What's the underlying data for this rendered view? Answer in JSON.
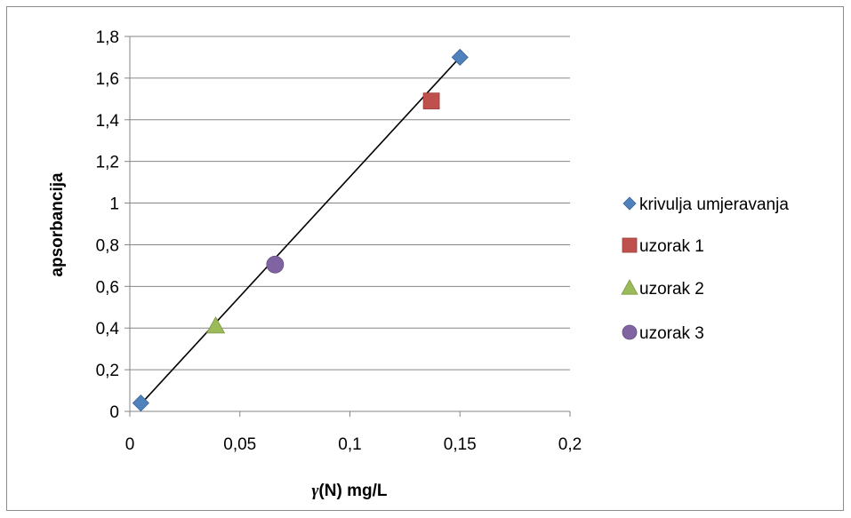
{
  "chart_data": {
    "type": "scatter",
    "title": "",
    "xlabel_symbol": "γ",
    "xlabel_rest": "(N) mg/L",
    "ylabel": "apsorbancija",
    "xlim": [
      0,
      0.2
    ],
    "ylim": [
      0,
      1.8
    ],
    "x_ticks": [
      0,
      0.05,
      0.1,
      0.15,
      0.2
    ],
    "x_tick_labels": [
      "0",
      "0,05",
      "0,1",
      "0,15",
      "0,2"
    ],
    "y_ticks": [
      0,
      0.2,
      0.4,
      0.6,
      0.8,
      1.0,
      1.2,
      1.4,
      1.6,
      1.8
    ],
    "y_tick_labels": [
      "0",
      "0,2",
      "0,4",
      "0,6",
      "0,8",
      "1",
      "1,2",
      "1,4",
      "1,6",
      "1,8"
    ],
    "grid": "horizontal",
    "legend_position": "right",
    "series": [
      {
        "name": "krivulja umjeravanja",
        "marker": "diamond",
        "color": "#4f81bd",
        "points": [
          [
            0.005,
            0.04
          ],
          [
            0.15,
            1.7
          ]
        ]
      },
      {
        "name": "uzorak 1",
        "marker": "square",
        "color": "#c0504d",
        "points": [
          [
            0.137,
            1.49
          ]
        ]
      },
      {
        "name": "uzorak 2",
        "marker": "triangle",
        "color": "#9bbb59",
        "points": [
          [
            0.039,
            0.41
          ]
        ]
      },
      {
        "name": "uzorak 3",
        "marker": "circle",
        "color": "#8064a2",
        "points": [
          [
            0.066,
            0.705
          ]
        ]
      }
    ],
    "trendline": {
      "color": "#000000",
      "from": [
        0.005,
        0.035
      ],
      "to": [
        0.15,
        1.7
      ]
    }
  }
}
